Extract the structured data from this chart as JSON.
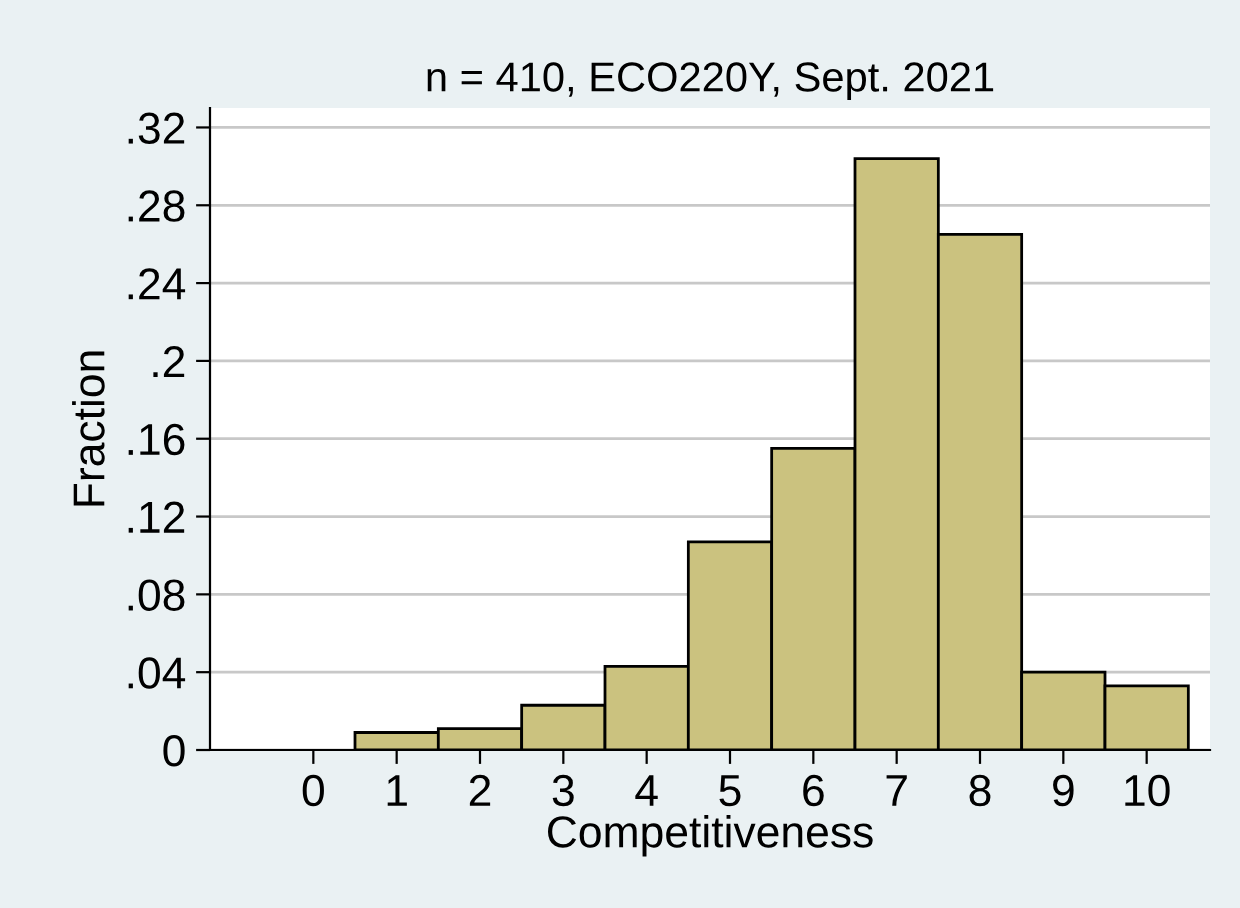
{
  "chart_data": {
    "type": "histogram",
    "title": "n = 410, ECO220Y, Sept. 2021",
    "xlabel": "Competitiveness",
    "ylabel": "Fraction",
    "bins": [
      0.5,
      1.5,
      2.5,
      3.5,
      4.5,
      5.5,
      6.5,
      7.5,
      8.5,
      9.5,
      10.5
    ],
    "values": [
      0.009,
      0.011,
      0.023,
      0.043,
      0.107,
      0.155,
      0.304,
      0.265,
      0.04,
      0.033
    ],
    "color": "#cbc27f",
    "xlim": [
      -1.24,
      10.76
    ],
    "xticks": [
      0,
      1,
      2,
      3,
      4,
      5,
      6,
      7,
      8,
      9,
      10
    ],
    "ylim": [
      0,
      0.33
    ],
    "yticks": [
      {
        "value": 0,
        "label": "0"
      },
      {
        "value": 0.04,
        "label": ".04"
      },
      {
        "value": 0.08,
        "label": ".08"
      },
      {
        "value": 0.12,
        "label": ".12"
      },
      {
        "value": 0.16,
        "label": ".16"
      },
      {
        "value": 0.2,
        "label": ".2"
      },
      {
        "value": 0.24,
        "label": ".24"
      },
      {
        "value": 0.28,
        "label": ".28"
      },
      {
        "value": 0.32,
        "label": ".32"
      }
    ],
    "grid": "y"
  }
}
